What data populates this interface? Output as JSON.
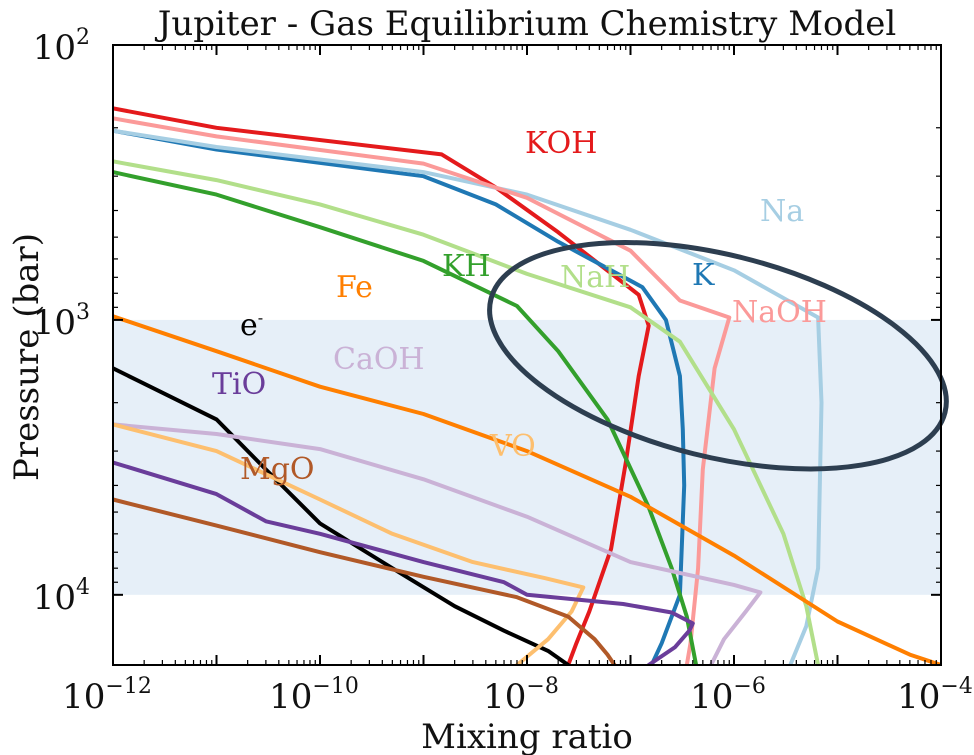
{
  "chart_data": {
    "type": "line",
    "title": "Jupiter - Gas Equilibrium Chemistry Model",
    "xlabel": "Mixing ratio",
    "ylabel": "Pressure (bar)",
    "x_scale": "log",
    "y_scale": "log",
    "y_inverted": true,
    "xlim": [
      1e-12,
      0.0001
    ],
    "ylim": [
      100,
      18000
    ],
    "x_ticks": [
      {
        "value": 1e-12,
        "base": "10",
        "exp": "−12"
      },
      {
        "value": 1e-10,
        "base": "10",
        "exp": "−10"
      },
      {
        "value": 1e-08,
        "base": "10",
        "exp": "−8"
      },
      {
        "value": 1e-06,
        "base": "10",
        "exp": "−6"
      },
      {
        "value": 0.0001,
        "base": "10",
        "exp": "−4"
      }
    ],
    "y_ticks": [
      {
        "value": 100,
        "base": "10",
        "exp": "2"
      },
      {
        "value": 1000,
        "base": "10",
        "exp": "3"
      },
      {
        "value": 10000,
        "base": "10",
        "exp": "4"
      }
    ],
    "shaded_band": {
      "y_range": [
        1000,
        10000
      ],
      "color": "#e6eff8"
    },
    "ellipse_highlight": {
      "center": [
        7e-07,
        1350
      ],
      "color": "#2d3e50"
    },
    "series": [
      {
        "name": "KOH",
        "color": "#e41a1c",
        "points": [
          [
            1e-12,
            170
          ],
          [
            1e-11,
            200
          ],
          [
            1.5e-09,
            250
          ],
          [
            5e-09,
            330
          ],
          [
            2e-08,
            480
          ],
          [
            1.2e-07,
            810
          ],
          [
            1.5e-07,
            1050
          ],
          [
            1.2e-07,
            1600
          ],
          [
            9e-08,
            3300
          ],
          [
            6.5e-08,
            6800
          ],
          [
            4e-08,
            11500
          ],
          [
            3e-08,
            15000
          ],
          [
            2.5e-08,
            18000
          ]
        ]
      },
      {
        "name": "K",
        "color": "#1f78b4",
        "points": [
          [
            1e-12,
            205
          ],
          [
            1e-11,
            240
          ],
          [
            1e-09,
            300
          ],
          [
            5e-09,
            380
          ],
          [
            2e-08,
            520
          ],
          [
            1.3e-07,
            760
          ],
          [
            2.2e-07,
            1000
          ],
          [
            3e-07,
            1600
          ],
          [
            3.2e-07,
            2500
          ],
          [
            3.3e-07,
            4000
          ],
          [
            3e-07,
            10000
          ],
          [
            2e-07,
            15000
          ],
          [
            1.6e-07,
            18000
          ]
        ]
      },
      {
        "name": "Na",
        "color": "#a6cee3",
        "points": [
          [
            1e-12,
            205
          ],
          [
            1e-11,
            235
          ],
          [
            1e-09,
            290
          ],
          [
            1e-08,
            350
          ],
          [
            1e-07,
            470
          ],
          [
            1e-06,
            660
          ],
          [
            6.5e-06,
            980
          ],
          [
            7e-06,
            2000
          ],
          [
            6.5e-06,
            8000
          ],
          [
            5e-06,
            13000
          ],
          [
            3.5e-06,
            18000
          ]
        ]
      },
      {
        "name": "NaOH",
        "color": "#fb9a99",
        "points": [
          [
            1e-12,
            185
          ],
          [
            1e-11,
            215
          ],
          [
            1e-09,
            270
          ],
          [
            1e-08,
            360
          ],
          [
            1e-07,
            560
          ],
          [
            3e-07,
            850
          ],
          [
            9e-07,
            980
          ],
          [
            6.5e-07,
            1500
          ],
          [
            5e-07,
            3500
          ],
          [
            4.5e-07,
            8000
          ],
          [
            3.8e-07,
            15000
          ],
          [
            3.5e-07,
            18000
          ]
        ]
      },
      {
        "name": "NaH",
        "color": "#b2df8a",
        "points": [
          [
            1e-12,
            265
          ],
          [
            1e-11,
            310
          ],
          [
            1e-10,
            380
          ],
          [
            1e-09,
            490
          ],
          [
            1e-08,
            680
          ],
          [
            1e-07,
            900
          ],
          [
            3e-07,
            1200
          ],
          [
            1e-06,
            2500
          ],
          [
            3e-06,
            6000
          ],
          [
            5e-06,
            11000
          ],
          [
            6.5e-06,
            18000
          ]
        ]
      },
      {
        "name": "KH",
        "color": "#33a02c",
        "points": [
          [
            1e-12,
            290
          ],
          [
            1e-11,
            350
          ],
          [
            1e-10,
            460
          ],
          [
            1e-09,
            610
          ],
          [
            8e-09,
            890
          ],
          [
            2e-08,
            1300
          ],
          [
            6e-08,
            2300
          ],
          [
            1.5e-07,
            4800
          ],
          [
            2.5e-07,
            8000
          ],
          [
            3.5e-07,
            12000
          ],
          [
            4.3e-07,
            18000
          ]
        ]
      },
      {
        "name": "Fe",
        "color": "#ff7f00",
        "points": [
          [
            1e-12,
            970
          ],
          [
            1e-11,
            1300
          ],
          [
            1e-10,
            1750
          ],
          [
            1e-09,
            2200
          ],
          [
            1e-08,
            3000
          ],
          [
            1e-07,
            4400
          ],
          [
            1e-06,
            7200
          ],
          [
            1e-05,
            12500
          ],
          [
            5e-05,
            16500
          ],
          [
            0.0001,
            18000
          ]
        ]
      },
      {
        "name": "e-",
        "color": "#000000",
        "points": [
          [
            1e-12,
            1500
          ],
          [
            1e-11,
            2300
          ],
          [
            3e-11,
            3500
          ],
          [
            1e-10,
            5500
          ],
          [
            5e-10,
            8000
          ],
          [
            2e-09,
            11000
          ],
          [
            6e-09,
            13500
          ],
          [
            1.6e-08,
            16000
          ],
          [
            2.5e-08,
            18000
          ]
        ]
      },
      {
        "name": "CaOH",
        "color": "#cab2d6",
        "points": [
          [
            1e-12,
            2400
          ],
          [
            1e-11,
            2600
          ],
          [
            1e-10,
            2950
          ],
          [
            1e-09,
            3800
          ],
          [
            1e-08,
            5200
          ],
          [
            1e-07,
            7600
          ],
          [
            1e-06,
            9200
          ],
          [
            1.8e-06,
            9800
          ],
          [
            1.3e-06,
            11500
          ],
          [
            8e-07,
            14500
          ],
          [
            6e-07,
            18000
          ]
        ]
      },
      {
        "name": "VO",
        "color": "#fdbf6f",
        "points": [
          [
            1e-12,
            2400
          ],
          [
            1e-11,
            3000
          ],
          [
            1e-10,
            4500
          ],
          [
            5e-10,
            6000
          ],
          [
            3e-09,
            7600
          ],
          [
            1.5e-08,
            8700
          ],
          [
            3.5e-08,
            9400
          ],
          [
            2.7e-08,
            11500
          ],
          [
            1.6e-08,
            14500
          ],
          [
            8e-09,
            18000
          ]
        ]
      },
      {
        "name": "TiO",
        "color": "#6a3d9a",
        "points": [
          [
            1e-12,
            3300
          ],
          [
            1e-11,
            4300
          ],
          [
            3e-11,
            5400
          ],
          [
            1e-10,
            6000
          ],
          [
            1e-09,
            7600
          ],
          [
            6e-09,
            9000
          ],
          [
            1e-08,
            10000
          ],
          [
            8.5e-08,
            10800
          ],
          [
            2.5e-07,
            11600
          ],
          [
            4e-07,
            12700
          ],
          [
            3.7e-07,
            13500
          ],
          [
            2.7e-07,
            15500
          ],
          [
            1.5e-07,
            18000
          ]
        ]
      },
      {
        "name": "MgO",
        "color": "#b15928",
        "points": [
          [
            1e-12,
            4500
          ],
          [
            1e-11,
            5600
          ],
          [
            1e-10,
            7000
          ],
          [
            1e-09,
            8600
          ],
          [
            8e-09,
            10200
          ],
          [
            2.5e-08,
            12000
          ],
          [
            4.5e-08,
            14500
          ],
          [
            6e-08,
            16500
          ],
          [
            7e-08,
            18000
          ]
        ]
      }
    ]
  },
  "labels": {
    "KOH": "KOH",
    "K": "K",
    "Na": "Na",
    "NaOH": "NaOH",
    "NaH": "NaH",
    "KH": "KH",
    "Fe": "Fe",
    "e": "e",
    "e_sup": "-",
    "CaOH": "CaOH",
    "VO": "VO",
    "TiO": "TiO",
    "MgO": "MgO"
  }
}
